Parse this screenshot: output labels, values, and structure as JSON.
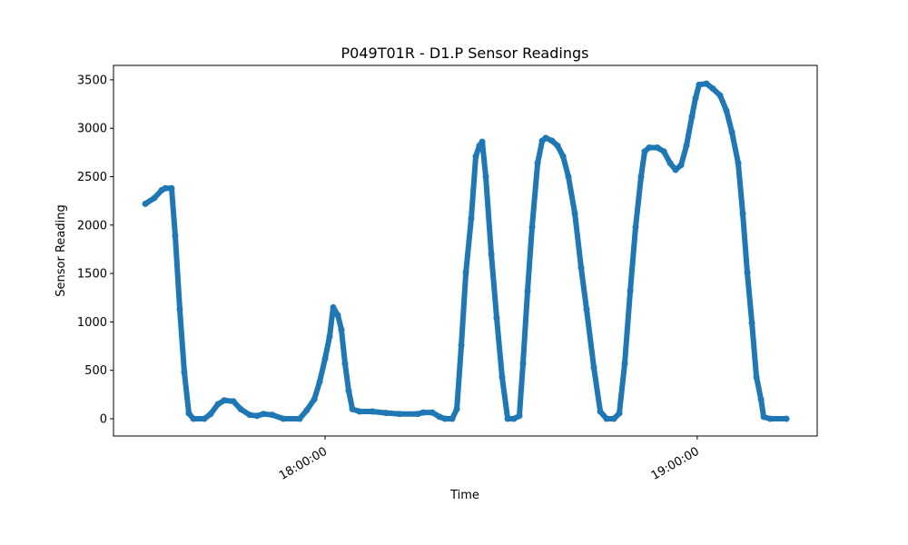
{
  "chart_data": {
    "type": "line",
    "title": "P049T01R - D1.P Sensor Readings",
    "x_label": "Time",
    "y_label": "Sensor Reading",
    "x": [
      "17:31:01",
      "17:32:28",
      "17:33:39",
      "17:34:14",
      "17:35:15",
      "17:35:50",
      "17:36:34",
      "17:37:18",
      "17:38:02",
      "17:38:46",
      "17:40:32",
      "17:41:33",
      "17:42:43",
      "17:43:45",
      "17:45:13",
      "17:46:23",
      "17:47:51",
      "17:49:01",
      "17:50:03",
      "17:51:30",
      "17:53:16",
      "17:55:54",
      "17:57:04",
      "17:58:15",
      "17:59:07",
      "18:00:00",
      "18:00:44",
      "18:01:19",
      "18:02:03",
      "18:02:38",
      "18:03:13",
      "18:03:48",
      "18:04:24",
      "18:05:34",
      "18:07:37",
      "18:09:49",
      "18:12:00",
      "18:14:56",
      "18:15:49",
      "18:17:17",
      "18:18:27",
      "18:19:20",
      "18:20:30",
      "18:21:14",
      "18:21:58",
      "18:22:42",
      "18:23:34",
      "18:24:18",
      "18:24:53",
      "18:25:20",
      "18:25:55",
      "18:26:48",
      "18:27:40",
      "18:28:33",
      "18:29:26",
      "18:30:27",
      "18:31:20",
      "18:31:55",
      "18:32:39",
      "18:33:23",
      "18:34:16",
      "18:35:00",
      "18:35:35",
      "18:36:36",
      "18:37:29",
      "18:38:22",
      "18:39:14",
      "18:40:16",
      "18:41:17",
      "18:42:10",
      "18:43:20",
      "18:44:22",
      "18:45:23",
      "18:46:34",
      "18:47:26",
      "18:48:19",
      "18:49:12",
      "18:50:04",
      "18:50:57",
      "18:51:32",
      "18:52:16",
      "18:53:35",
      "18:54:37",
      "18:55:38",
      "18:56:31",
      "18:57:24",
      "18:58:16",
      "18:59:09",
      "18:59:44",
      "19:00:19",
      "19:01:30",
      "19:02:31",
      "19:03:41",
      "19:04:43",
      "19:05:36",
      "19:06:37",
      "19:07:21",
      "19:08:05",
      "19:08:49",
      "19:09:33",
      "19:10:17",
      "19:10:43",
      "19:11:45",
      "19:14:23"
    ],
    "series": [
      {
        "name": "D1.P",
        "color": "#1f77b4",
        "values": [
          2220,
          2280,
          2360,
          2380,
          2380,
          1890,
          1130,
          480,
          55,
          0,
          0,
          50,
          150,
          190,
          180,
          100,
          40,
          30,
          50,
          40,
          0,
          0,
          90,
          200,
          380,
          620,
          850,
          1150,
          1070,
          920,
          570,
          290,
          100,
          75,
          75,
          60,
          50,
          50,
          65,
          65,
          20,
          0,
          0,
          100,
          760,
          1510,
          2070,
          2710,
          2820,
          2860,
          2500,
          1700,
          1040,
          430,
          0,
          0,
          30,
          570,
          1320,
          1980,
          2640,
          2870,
          2900,
          2870,
          2820,
          2710,
          2500,
          2120,
          1560,
          1130,
          530,
          75,
          0,
          0,
          55,
          570,
          1320,
          1980,
          2500,
          2760,
          2800,
          2800,
          2760,
          2640,
          2570,
          2620,
          2820,
          3120,
          3310,
          3450,
          3460,
          3410,
          3340,
          3180,
          2960,
          2640,
          2120,
          1510,
          990,
          430,
          200,
          20,
          0,
          0
        ]
      }
    ],
    "xlim": [
      "17:25:53",
      "19:19:21"
    ],
    "xticks": [
      "18:00:00",
      "19:00:00"
    ],
    "ylim": [
      -178,
      3649
    ],
    "yticks": [
      0,
      500,
      1000,
      1500,
      2000,
      2500,
      3000,
      3500
    ],
    "grid": false
  }
}
